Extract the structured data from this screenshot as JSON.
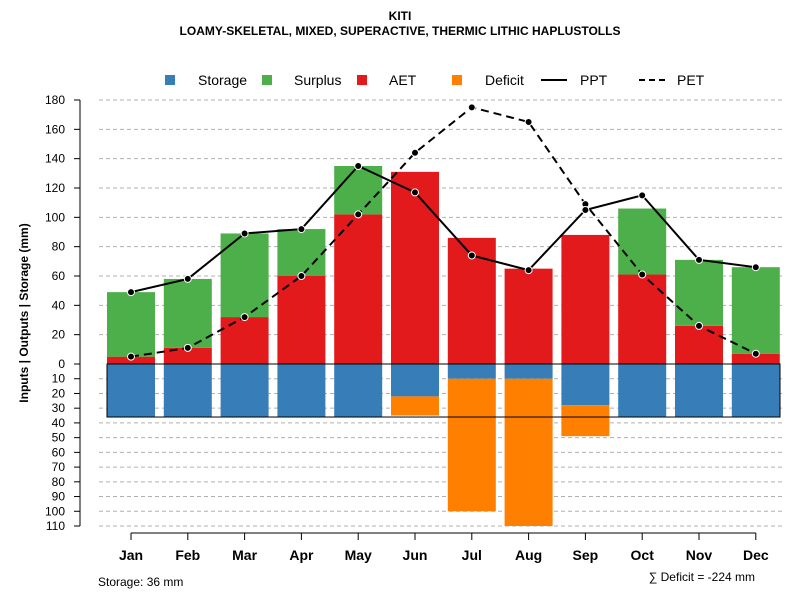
{
  "chart_data": {
    "type": "bar",
    "title": "KITI",
    "subtitle": "LOAMY-SKELETAL, MIXED, SUPERACTIVE, THERMIC LITHIC HAPLUSTOLLS",
    "ylabel": "Inputs | Outputs | Storage    (mm)",
    "categories": [
      "Jan",
      "Feb",
      "Mar",
      "Apr",
      "May",
      "Jun",
      "Jul",
      "Aug",
      "Sep",
      "Oct",
      "Nov",
      "Dec"
    ],
    "upper_ylim": [
      0,
      180
    ],
    "upper_ticks": [
      "0",
      "20",
      "40",
      "60",
      "80",
      "100",
      "120",
      "140",
      "160",
      "180"
    ],
    "upper_tick_values": [
      0,
      20,
      40,
      60,
      80,
      100,
      120,
      140,
      160,
      180
    ],
    "lower_ylim": [
      0,
      110
    ],
    "lower_ticks": [
      "10",
      "20",
      "30",
      "40",
      "50",
      "60",
      "70",
      "80",
      "90",
      "100",
      "110"
    ],
    "lower_tick_values": [
      10,
      20,
      30,
      40,
      50,
      60,
      70,
      80,
      90,
      100,
      110
    ],
    "series": [
      {
        "name": "AET",
        "color": "#E31A1C",
        "values": [
          5,
          11,
          32,
          60,
          102,
          131,
          86,
          65,
          88,
          61,
          26,
          7
        ]
      },
      {
        "name": "Surplus",
        "color": "#4DAF4A",
        "values": [
          44,
          47,
          57,
          32,
          33,
          0,
          0,
          0,
          0,
          45,
          45,
          59
        ]
      },
      {
        "name": "Storage",
        "color": "#377EB8",
        "values": [
          36,
          36,
          36,
          36,
          36,
          22,
          10,
          10,
          28,
          36,
          36,
          36
        ]
      },
      {
        "name": "Deficit",
        "color": "#FF7F00",
        "values": [
          0,
          0,
          0,
          0,
          0,
          13,
          90,
          100,
          21,
          0,
          0,
          0
        ]
      },
      {
        "name": "PPT",
        "values": [
          49,
          58,
          89,
          92,
          135,
          117,
          74,
          64,
          105,
          115,
          71,
          66
        ]
      },
      {
        "name": "PET",
        "values": [
          5,
          11,
          32,
          60,
          102,
          144,
          175,
          165,
          109,
          61,
          26,
          7
        ]
      }
    ],
    "storage_capacity": 36,
    "legend": {
      "position": "top",
      "items": [
        {
          "label": "Storage",
          "kind": "box",
          "color": "#377EB8"
        },
        {
          "label": "Surplus",
          "kind": "box",
          "color": "#4DAF4A"
        },
        {
          "label": "AET",
          "kind": "box",
          "color": "#E31A1C"
        },
        {
          "label": "Deficit",
          "kind": "box",
          "color": "#FF7F00"
        },
        {
          "label": "PPT",
          "kind": "line"
        },
        {
          "label": "PET",
          "kind": "dash"
        }
      ]
    },
    "grid": true
  },
  "footer": {
    "storage_text": "Storage: 36 mm",
    "deficit_text": "∑ Deficit = -224 mm"
  }
}
